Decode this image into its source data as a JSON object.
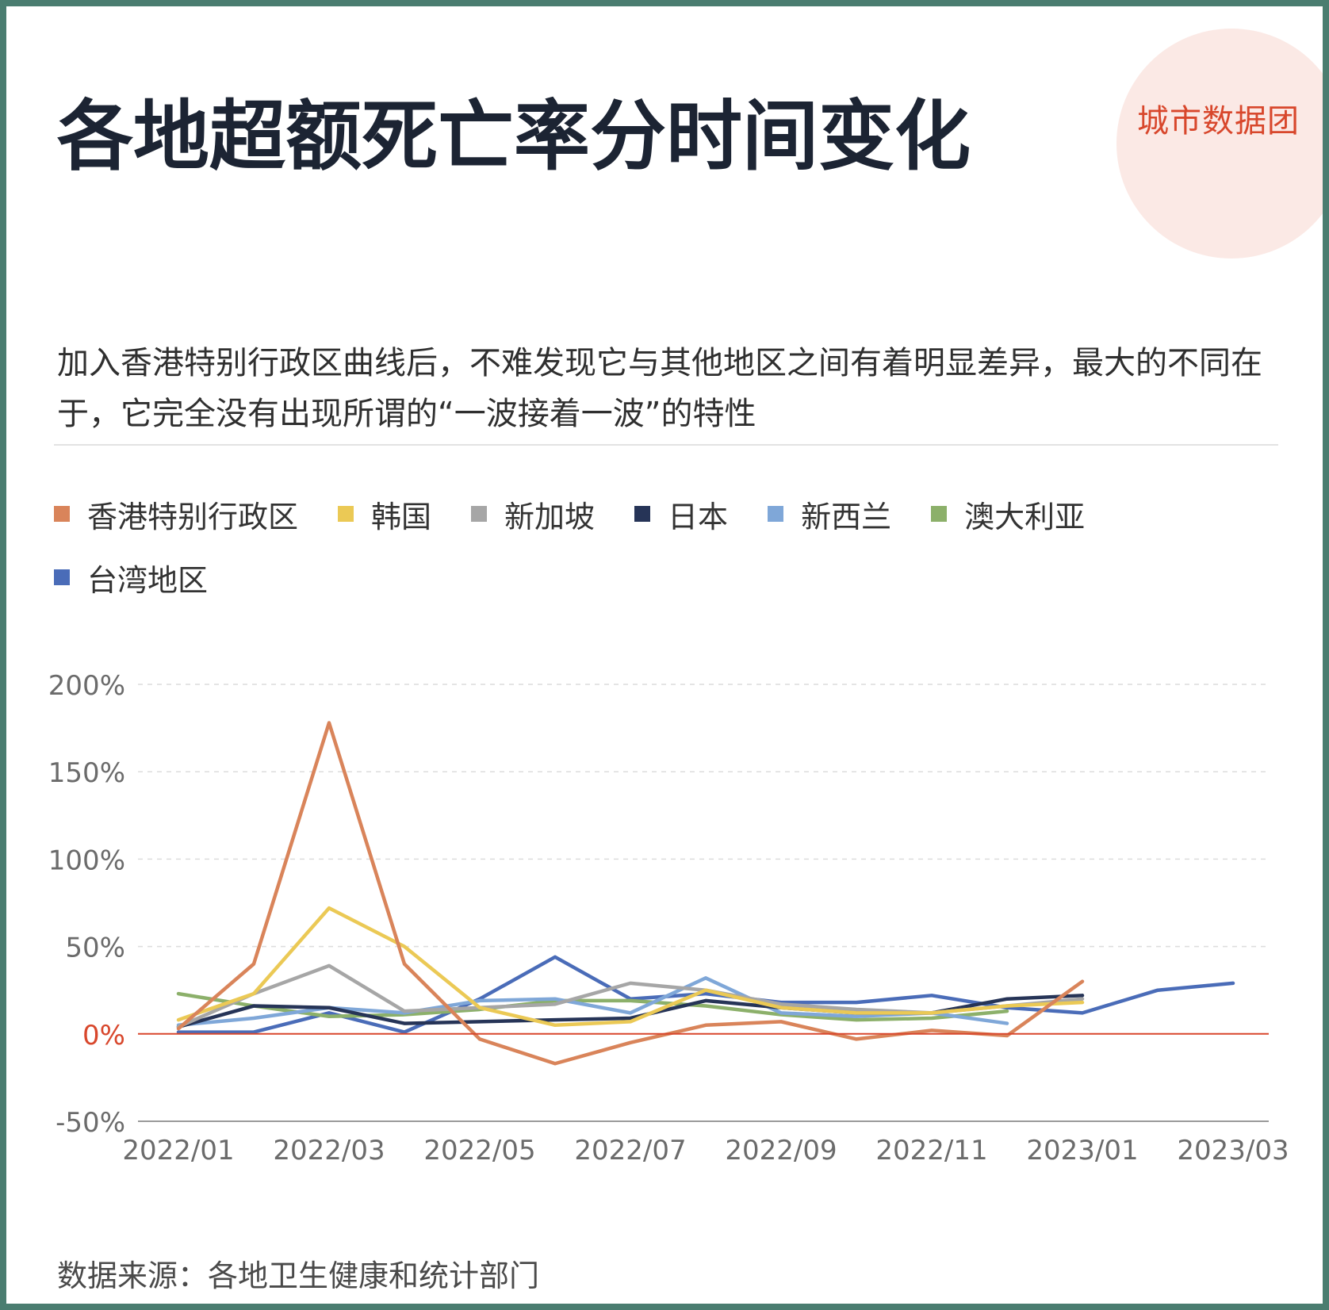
{
  "logo": {
    "text": "城市数据团"
  },
  "title": "各地超额死亡率分时间变化",
  "subtitle": "加入香港特别行政区曲线后，不难发现它与其他地区之间有着明显差异，最大的不同在于，它完全没有出现所谓的“一波接着一波”的特性",
  "source": "数据来源：各地卫生健康和统计部门",
  "chart_data": {
    "type": "line",
    "x": [
      "2022/01",
      "2022/02",
      "2022/03",
      "2022/04",
      "2022/05",
      "2022/06",
      "2022/07",
      "2022/08",
      "2022/09",
      "2022/10",
      "2022/11",
      "2022/12",
      "2023/01",
      "2023/02",
      "2023/03"
    ],
    "x_tick_labels": [
      "2022/01",
      "2022/03",
      "2022/05",
      "2022/07",
      "2022/09",
      "2022/11",
      "2023/01",
      "2023/03"
    ],
    "y_tick_labels": [
      "200%",
      "150%",
      "100%",
      "50%",
      "0%",
      "-50%"
    ],
    "y_ticks": [
      200,
      150,
      100,
      50,
      0,
      -50
    ],
    "ylim": [
      -50,
      200
    ],
    "grid": true,
    "legend_position": "top",
    "series": [
      {
        "name": "香港特别行政区",
        "color": "#d9845a",
        "values": [
          3,
          40,
          178,
          40,
          -3,
          -17,
          -5,
          5,
          7,
          -3,
          2,
          -1,
          30,
          null,
          null
        ]
      },
      {
        "name": "韩国",
        "color": "#ebc955",
        "values": [
          8,
          23,
          72,
          50,
          15,
          5,
          7,
          25,
          15,
          12,
          12,
          16,
          18,
          null,
          null
        ]
      },
      {
        "name": "新加坡",
        "color": "#a6a6a6",
        "values": [
          4,
          23,
          39,
          13,
          15,
          17,
          29,
          25,
          17,
          14,
          12,
          16,
          20,
          null,
          null
        ]
      },
      {
        "name": "日本",
        "color": "#263457",
        "values": [
          4,
          16,
          15,
          6,
          7,
          8,
          9,
          19,
          15,
          12,
          12,
          20,
          22,
          null,
          null
        ]
      },
      {
        "name": "新西兰",
        "color": "#7fa7d8",
        "values": [
          5,
          9,
          15,
          12,
          19,
          20,
          12,
          32,
          12,
          10,
          12,
          6,
          null,
          null,
          null
        ]
      },
      {
        "name": "澳大利亚",
        "color": "#8cb06a",
        "values": [
          23,
          16,
          10,
          11,
          14,
          19,
          19,
          16,
          11,
          8,
          9,
          13,
          null,
          null,
          null
        ]
      },
      {
        "name": "台湾地区",
        "color": "#4a6cb8",
        "values": [
          1,
          1,
          12,
          1,
          20,
          44,
          20,
          23,
          18,
          18,
          22,
          15,
          12,
          25,
          29
        ]
      }
    ]
  }
}
